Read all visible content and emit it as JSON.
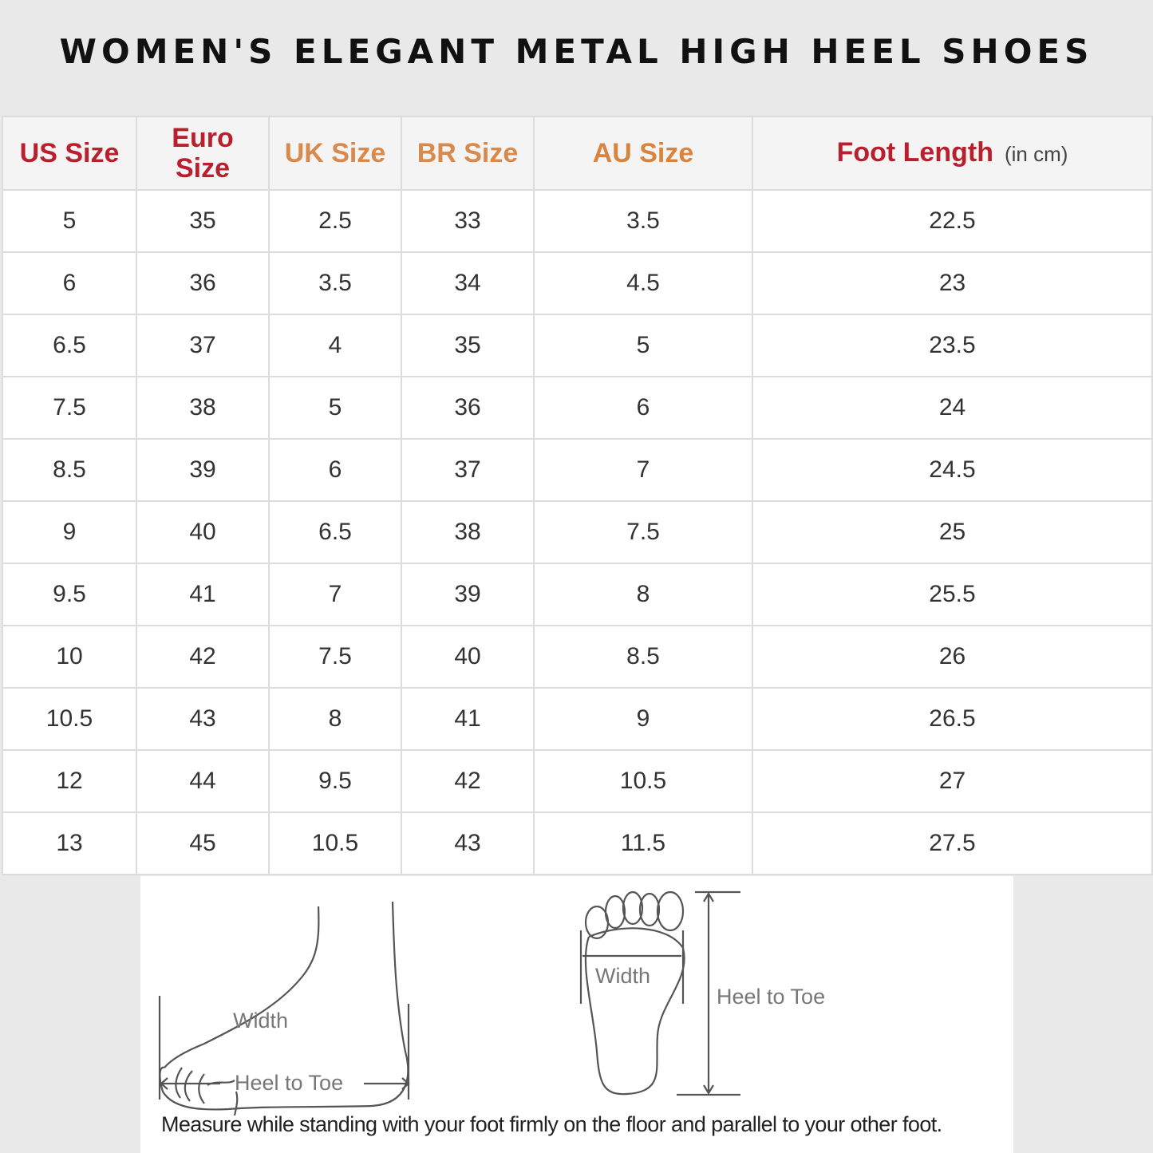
{
  "title": "WOMEN'S ELEGANT METAL HIGH HEEL SHOES",
  "table": {
    "headers": [
      "US Size",
      "Euro Size",
      "UK Size",
      "BR Size",
      "AU Size",
      "Foot Length"
    ],
    "foot_length_unit": "(in cm)",
    "header_colors": {
      "red": "#b8202e",
      "orange": "#d88a4c"
    },
    "rows": [
      [
        "5",
        "35",
        "2.5",
        "33",
        "3.5",
        "22.5"
      ],
      [
        "6",
        "36",
        "3.5",
        "34",
        "4.5",
        "23"
      ],
      [
        "6.5",
        "37",
        "4",
        "35",
        "5",
        "23.5"
      ],
      [
        "7.5",
        "38",
        "5",
        "36",
        "6",
        "24"
      ],
      [
        "8.5",
        "39",
        "6",
        "37",
        "7",
        "24.5"
      ],
      [
        "9",
        "40",
        "6.5",
        "38",
        "7.5",
        "25"
      ],
      [
        "9.5",
        "41",
        "7",
        "39",
        "8",
        "25.5"
      ],
      [
        "10",
        "42",
        "7.5",
        "40",
        "8.5",
        "26"
      ],
      [
        "10.5",
        "43",
        "8",
        "41",
        "9",
        "26.5"
      ],
      [
        "12",
        "44",
        "9.5",
        "42",
        "10.5",
        "27"
      ],
      [
        "13",
        "45",
        "10.5",
        "43",
        "11.5",
        "27.5"
      ]
    ]
  },
  "diagram": {
    "side_width_label": "Width",
    "side_length_label": "Heel to Toe",
    "top_width_label": "Width",
    "top_length_label": "Heel to Toe",
    "note": "Measure while standing with your foot firmly on the floor and parallel to your other foot."
  }
}
